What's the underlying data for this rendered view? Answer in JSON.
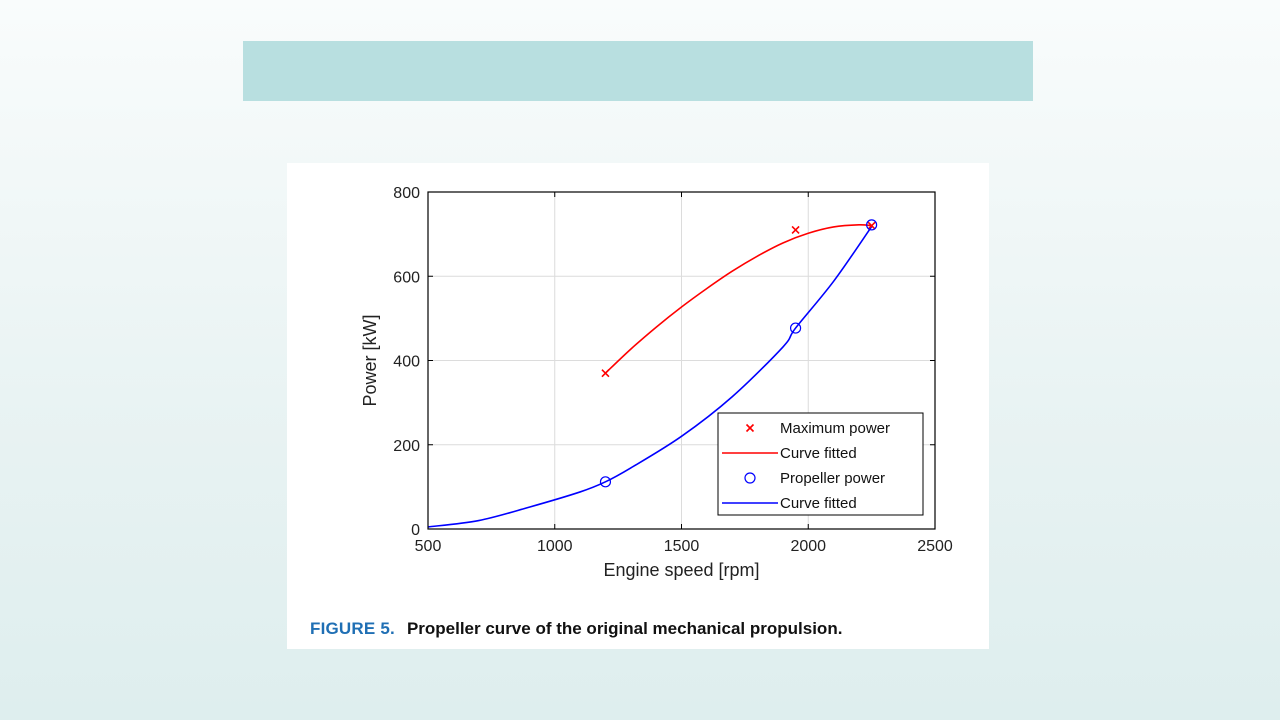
{
  "slide": {
    "title_banner_color": "#b8dfe0"
  },
  "figure": {
    "caption_label": "FIGURE 5.",
    "caption_text": "Propeller curve of the original mechanical propulsion."
  },
  "chart_data": {
    "type": "line",
    "xlabel": "Engine speed [rpm]",
    "ylabel": "Power [kW]",
    "xlim": [
      500,
      2500
    ],
    "ylim": [
      0,
      800
    ],
    "xticks": [
      500,
      1000,
      1500,
      2000,
      2500
    ],
    "yticks": [
      0,
      200,
      400,
      600,
      800
    ],
    "grid": true,
    "legend_position": "bottom-right",
    "series": [
      {
        "name": "Maximum power",
        "kind": "marker",
        "marker": "x",
        "color": "#ff0000",
        "x": [
          1200,
          1950,
          2250
        ],
        "y": [
          370,
          710,
          720
        ]
      },
      {
        "name": "Curve fitted",
        "kind": "line",
        "color": "#ff0000",
        "x": [
          1200,
          1300,
          1400,
          1500,
          1600,
          1700,
          1800,
          1900,
          2000,
          2100,
          2200,
          2250
        ],
        "y": [
          370,
          427,
          479,
          527,
          571,
          612,
          648,
          679,
          702,
          717,
          722,
          720
        ]
      },
      {
        "name": "Propeller power",
        "kind": "marker",
        "marker": "o",
        "color": "#0000ff",
        "x": [
          1200,
          1950,
          2250
        ],
        "y": [
          112,
          477,
          722
        ]
      },
      {
        "name": "Curve fitted",
        "kind": "line",
        "color": "#0000ff",
        "x": [
          500,
          700,
          900,
          1100,
          1200,
          1300,
          1500,
          1700,
          1900,
          1950,
          2100,
          2250
        ],
        "y": [
          5,
          20,
          52,
          88,
          112,
          145,
          220,
          314,
          432,
          477,
          588,
          718
        ]
      }
    ]
  }
}
